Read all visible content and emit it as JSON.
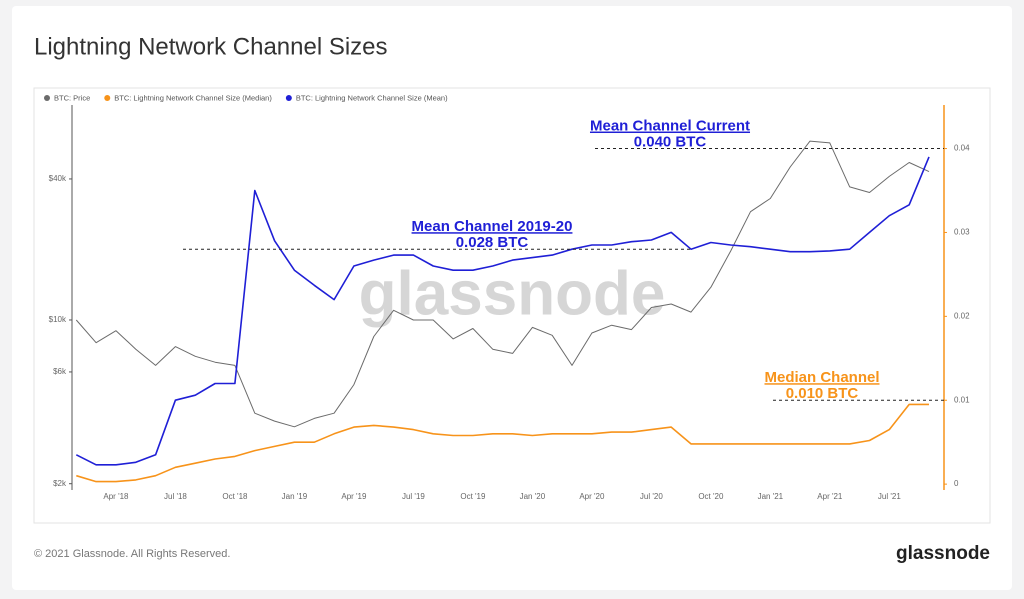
{
  "chart_data": {
    "type": "line",
    "title": "Lightning Network Channel Sizes",
    "watermark": "glassnode",
    "footer": "© 2021 Glassnode. All Rights Reserved.",
    "logo": "glassnode",
    "categories": [
      null,
      null,
      "Apr '18",
      null,
      null,
      "Jul '18",
      null,
      null,
      "Oct '18",
      null,
      null,
      "Jan '19",
      null,
      null,
      "Apr '19",
      null,
      null,
      "Jul '19",
      null,
      null,
      "Oct '19",
      null,
      null,
      "Jan '20",
      null,
      null,
      "Apr '20",
      null,
      null,
      "Jul '20",
      null,
      null,
      "Oct '20",
      null,
      null,
      "Jan '21",
      null,
      null,
      "Apr '21",
      null,
      null,
      "Jul '21",
      null,
      null
    ],
    "ylog": true,
    "ylim": [
      1880,
      75000
    ],
    "yticks": [
      {
        "value": 2000,
        "label": "$2k"
      },
      {
        "value": 6000,
        "label": "$6k"
      },
      {
        "value": 10000,
        "label": "$10k"
      },
      {
        "value": 40000,
        "label": "$40k"
      }
    ],
    "y2lim": [
      -0.0007,
      0.044
    ],
    "y2ticks": [
      0,
      0.01,
      0.02,
      0.03,
      0.04
    ],
    "y2color": "#f7931a",
    "grid": false,
    "series": [
      {
        "name": "BTC: Price",
        "color": "#6b6b6b",
        "values": [
          10000,
          8000,
          9000,
          7500,
          6400,
          7700,
          7000,
          6600,
          6400,
          4000,
          3700,
          3500,
          3800,
          4000,
          5300,
          8500,
          11000,
          10000,
          10000,
          8300,
          9200,
          7500,
          7200,
          9300,
          8600,
          6400,
          8800,
          9500,
          9100,
          11300,
          11700,
          10800,
          13800,
          19700,
          29000,
          33000,
          45000,
          58000,
          57000,
          37000,
          35000,
          41000,
          47000,
          43000
        ]
      },
      {
        "name": "BTC: Lightning Network Channel Size (Median)",
        "color": "#f7931a",
        "axis": "y2",
        "values": [
          0.001,
          0.0003,
          0.0003,
          0.0005,
          0.001,
          0.002,
          0.0025,
          0.003,
          0.0033,
          0.004,
          0.0045,
          0.005,
          0.005,
          0.006,
          0.0068,
          0.007,
          0.0068,
          0.0065,
          0.006,
          0.0058,
          0.0058,
          0.006,
          0.006,
          0.0058,
          0.006,
          0.006,
          0.006,
          0.0062,
          0.0062,
          0.0065,
          0.0068,
          0.0048,
          0.0048,
          0.0048,
          0.0048,
          0.0048,
          0.0048,
          0.0048,
          0.0048,
          0.0048,
          0.0052,
          0.0065,
          0.0095,
          0.0095
        ]
      },
      {
        "name": "BTC: Lightning Network Channel Size (Mean)",
        "color": "#1f1fd6",
        "axis": "y2",
        "values": [
          0.0035,
          0.0023,
          0.0023,
          0.0026,
          0.0035,
          0.01,
          0.0106,
          0.012,
          0.012,
          0.035,
          0.029,
          0.0255,
          0.0237,
          0.022,
          0.026,
          0.0267,
          0.0273,
          0.0273,
          0.026,
          0.0255,
          0.0255,
          0.026,
          0.0267,
          0.027,
          0.0273,
          0.028,
          0.0285,
          0.0285,
          0.0289,
          0.0291,
          0.03,
          0.028,
          0.0288,
          0.0285,
          0.0283,
          0.028,
          0.0277,
          0.0277,
          0.0278,
          0.028,
          0.03,
          0.032,
          0.0333,
          0.039
        ]
      }
    ],
    "annotations": [
      {
        "title": "Mean Channel Current",
        "label": "0.040 BTC",
        "value": 0.04,
        "color": "#1f1fd6"
      },
      {
        "title": "Mean Channel 2019-20",
        "label": "0.028 BTC",
        "value": 0.028,
        "color": "#1f1fd6"
      },
      {
        "title": "Median Channel",
        "label": "0.010 BTC",
        "value": 0.01,
        "color": "#f7931a"
      }
    ]
  }
}
